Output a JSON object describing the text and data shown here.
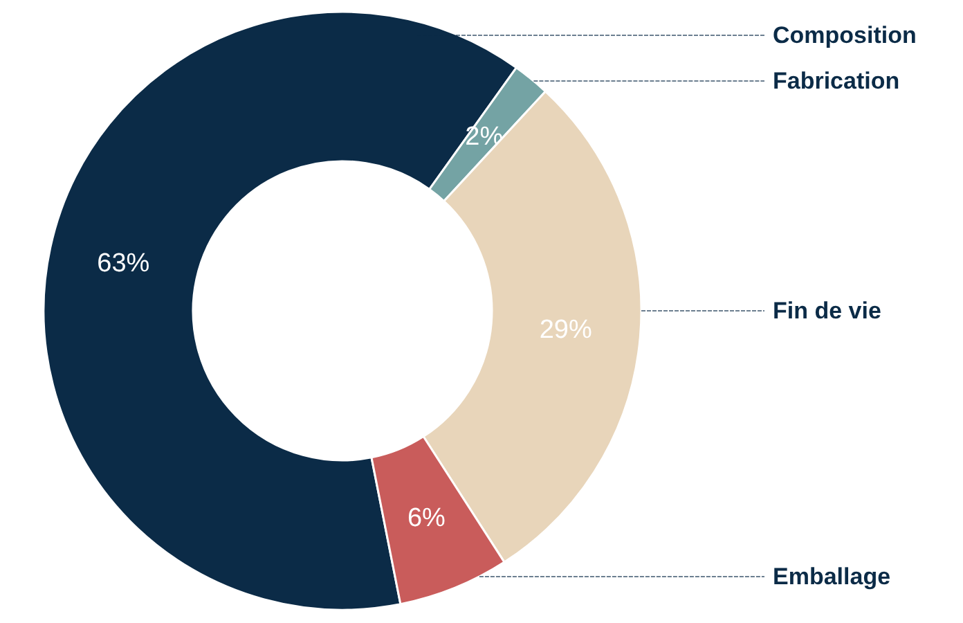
{
  "chart_data": {
    "type": "donut",
    "categories": [
      "Composition",
      "Fabrication",
      "Fin de vie",
      "Emballage"
    ],
    "values": [
      63,
      2,
      29,
      6
    ],
    "colors": [
      "#0b2b47",
      "#74a3a4",
      "#e8d5ba",
      "#c95c5b"
    ],
    "value_labels": [
      "63%",
      "2%",
      "29%",
      "6%"
    ]
  }
}
